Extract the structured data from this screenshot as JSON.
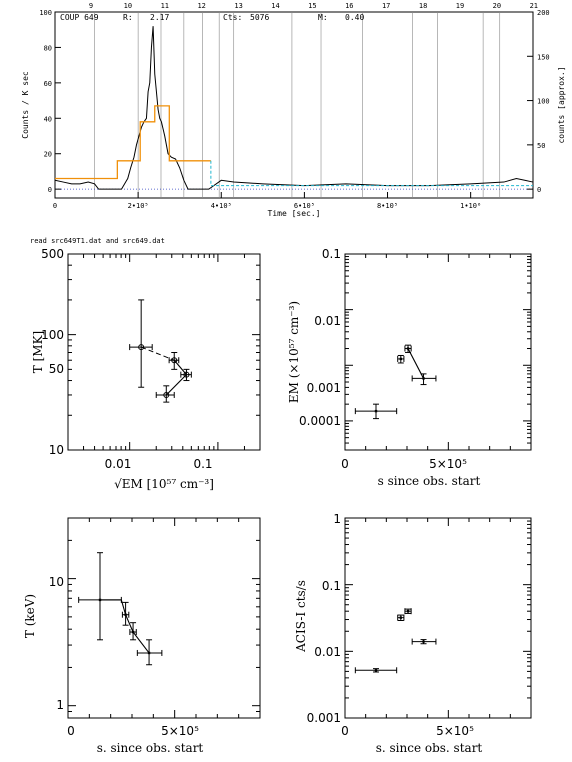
{
  "lightcurve": {
    "header": {
      "source": "COUP 649",
      "r_label": "R:",
      "r_value": "2.17",
      "cts_label": "Cts:",
      "cts_value": "5076",
      "m_label": "M:",
      "m_value": "0.40"
    },
    "xlabel": "Time [sec.]",
    "ylabel_left": "Counts / K sec",
    "ylabel_right": "counts [approx.]",
    "x_ticks": [
      {
        "v": 0,
        "t": "0"
      },
      {
        "v": 200000,
        "t": "2•10⁵"
      },
      {
        "v": 400000,
        "t": "4•10⁵"
      },
      {
        "v": 600000,
        "t": "6•10⁵"
      },
      {
        "v": 800000,
        "t": "8•10⁵"
      },
      {
        "v": 1000000,
        "t": "1•10⁶"
      }
    ],
    "y_ticks_left": [
      0,
      20,
      40,
      60,
      80,
      100
    ],
    "y_ticks_right": [
      0,
      50,
      100,
      150,
      200
    ],
    "top_ticks": [
      "9",
      "10",
      "11",
      "12",
      "13",
      "14",
      "15",
      "16",
      "17",
      "18",
      "19",
      "20",
      "21"
    ]
  },
  "caption": "read src649T1.dat and src649.dat",
  "panel_t_em": {
    "ylabel": "T [MK]",
    "xlabel": "√EM [10⁵⁷ cm⁻³]",
    "x_ticks": [
      "0.01",
      "0.1"
    ],
    "y_ticks": [
      "500",
      "100",
      "50",
      "10"
    ]
  },
  "panel_em_time": {
    "ylabel": "EM (×10⁵⁷ cm⁻³)",
    "xlabel": "s since obs. start",
    "x_ticks": [
      "0",
      "5×10⁵"
    ],
    "y_ticks": [
      "0.1",
      "0.01",
      "0.001",
      "0.0001"
    ]
  },
  "panel_kt_time": {
    "ylabel": "T (keV)",
    "xlabel": "s. since obs. start",
    "x_ticks": [
      "0",
      "5×10⁵"
    ],
    "y_ticks": [
      "10",
      "1"
    ]
  },
  "panel_rate_time": {
    "ylabel": "ACIS-I cts/s",
    "xlabel": "s. since obs. start",
    "x_ticks": [
      "0",
      "5×10⁵"
    ],
    "y_ticks": [
      "1",
      "0.1",
      "0.01",
      "0.001"
    ]
  },
  "chart_data": [
    {
      "type": "line",
      "panel": "lightcurve",
      "xlim": [
        0,
        1150000
      ],
      "ylim": [
        -5,
        100
      ],
      "observation_boundaries": [
        95000,
        200000,
        255000,
        310000,
        355000,
        395000,
        430000,
        570000,
        640000,
        740000,
        860000,
        920000,
        1030000,
        1070000
      ],
      "series": [
        {
          "x": [
            0,
            20000,
            40000,
            60000,
            80000,
            95000,
            105000,
            120000,
            140000,
            160000,
            175000,
            182000,
            190000,
            196000,
            202000,
            208000,
            214000,
            220000,
            224000,
            228000,
            232000,
            236000,
            240000,
            244000,
            248000,
            252000,
            256000,
            260000,
            264000,
            268000,
            272000,
            280000,
            290000,
            300000,
            310000,
            320000,
            330000,
            340000,
            370000,
            400000,
            430000,
            500000,
            600000,
            700000,
            800000,
            900000,
            1000000,
            1080000,
            1110000,
            1130000,
            1150000
          ],
          "y": [
            5,
            4,
            3,
            3,
            4,
            3,
            0,
            0,
            0,
            0,
            6,
            12,
            18,
            25,
            30,
            35,
            38,
            40,
            55,
            60,
            80,
            92,
            65,
            55,
            45,
            40,
            38,
            34,
            30,
            25,
            20,
            18,
            17,
            12,
            5,
            0,
            0,
            0,
            0,
            5,
            4,
            3,
            2,
            3,
            2,
            2,
            3,
            4,
            6,
            5,
            4
          ]
        },
        {
          "x": [
            0,
            150000,
            150000,
            205000,
            205000,
            240000,
            240000,
            275000,
            275000,
            340000,
            340000,
            375000
          ],
          "y": [
            6,
            6,
            16,
            16,
            38,
            38,
            47,
            47,
            16,
            16,
            16,
            16
          ]
        },
        {
          "x": [
            375000,
            375000,
            1150000
          ],
          "y": [
            16,
            2,
            2
          ]
        }
      ]
    },
    {
      "type": "scatter",
      "panel": "panel_t_em",
      "xscale": "log",
      "yscale": "log",
      "xlim": [
        0.002,
        0.3
      ],
      "ylim": [
        10,
        500
      ],
      "points": [
        {
          "x": 0.0135,
          "y": 78,
          "xerr": [
            0.01,
            0.018
          ],
          "yerr": [
            35,
            200
          ]
        },
        {
          "x": 0.032,
          "y": 60,
          "xerr": [
            0.028,
            0.036
          ],
          "yerr": [
            50,
            70
          ]
        },
        {
          "x": 0.044,
          "y": 45,
          "xerr": [
            0.038,
            0.05
          ],
          "yerr": [
            40,
            50
          ]
        },
        {
          "x": 0.026,
          "y": 30,
          "xerr": [
            0.02,
            0.032
          ],
          "yerr": [
            26,
            36
          ]
        }
      ],
      "dashed_path": [
        [
          0.0135,
          78
        ],
        [
          0.032,
          60
        ]
      ],
      "solid_path": [
        [
          0.032,
          60
        ],
        [
          0.044,
          45
        ],
        [
          0.026,
          30
        ]
      ]
    },
    {
      "type": "scatter",
      "panel": "panel_em_time",
      "yscale": "log",
      "xlim": [
        0,
        900000
      ],
      "ylim": [
        3e-05,
        0.1
      ],
      "points": [
        {
          "x": 150000,
          "y": 0.00015,
          "xerr": [
            50000,
            250000
          ],
          "yerr": [
            0.00011,
            0.0002
          ]
        },
        {
          "x": 270000,
          "y": 0.0013,
          "xerr": [
            255000,
            285000
          ],
          "yerr": [
            0.0011,
            0.0015
          ]
        },
        {
          "x": 305000,
          "y": 0.002,
          "xerr": [
            290000,
            320000
          ],
          "yerr": [
            0.0017,
            0.0023
          ]
        },
        {
          "x": 380000,
          "y": 0.00058,
          "xerr": [
            325000,
            440000
          ],
          "yerr": [
            0.00045,
            0.0007
          ]
        }
      ],
      "solid_path": [
        [
          305000,
          0.002
        ],
        [
          380000,
          0.00058
        ]
      ]
    },
    {
      "type": "scatter",
      "panel": "panel_kt_time",
      "yscale": "log",
      "xlim": [
        0,
        900000
      ],
      "ylim": [
        0.8,
        30
      ],
      "points": [
        {
          "x": 150000,
          "y": 6.8,
          "xerr": [
            50000,
            250000
          ],
          "yerr": [
            3.3,
            16
          ]
        },
        {
          "x": 270000,
          "y": 5.2,
          "xerr": [
            255000,
            285000
          ],
          "yerr": [
            4.3,
            6.5
          ]
        },
        {
          "x": 305000,
          "y": 3.8,
          "xerr": [
            290000,
            320000
          ],
          "yerr": [
            3.3,
            4.5
          ]
        },
        {
          "x": 380000,
          "y": 2.6,
          "xerr": [
            325000,
            440000
          ],
          "yerr": [
            2.1,
            3.3
          ]
        }
      ],
      "solid_path": [
        [
          150000,
          6.8
        ],
        [
          250000,
          6.8
        ],
        [
          270000,
          5.2
        ],
        [
          305000,
          3.8
        ],
        [
          380000,
          2.6
        ]
      ]
    },
    {
      "type": "scatter",
      "panel": "panel_rate_time",
      "yscale": "log",
      "xlim": [
        0,
        900000
      ],
      "ylim": [
        0.001,
        1
      ],
      "points": [
        {
          "x": 150000,
          "y": 0.0052,
          "xerr": [
            50000,
            250000
          ],
          "yerr": [
            0.0049,
            0.0055
          ]
        },
        {
          "x": 270000,
          "y": 0.032,
          "xerr": [
            255000,
            285000
          ],
          "yerr": [
            0.029,
            0.035
          ]
        },
        {
          "x": 305000,
          "y": 0.04,
          "xerr": [
            290000,
            320000
          ],
          "yerr": [
            0.037,
            0.043
          ]
        },
        {
          "x": 380000,
          "y": 0.014,
          "xerr": [
            325000,
            440000
          ],
          "yerr": [
            0.013,
            0.015
          ]
        }
      ]
    }
  ]
}
